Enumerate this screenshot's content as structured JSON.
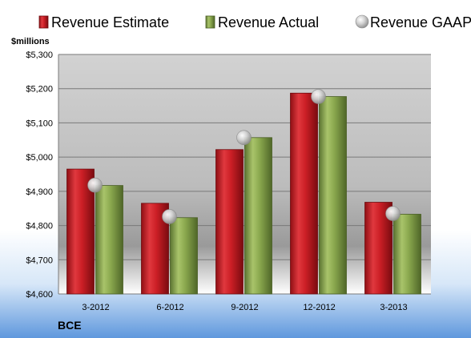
{
  "chart_data": {
    "type": "bar",
    "categories": [
      "3-2012",
      "6-2012",
      "9-2012",
      "12-2012",
      "3-2013"
    ],
    "series": [
      {
        "name": "Revenue Estimate",
        "kind": "bar",
        "color": "#cc1f26",
        "values": [
          4965,
          4865,
          5022,
          5187,
          4868
        ]
      },
      {
        "name": "Revenue Actual",
        "kind": "bar",
        "color": "#8aa84e",
        "values": [
          4917,
          4823,
          5057,
          5177,
          4833
        ]
      },
      {
        "name": "Revenue GAAP",
        "kind": "marker",
        "color": "#b5b5b5",
        "values": [
          4918,
          4826,
          5057,
          5177,
          4835
        ]
      }
    ],
    "ylabel": "$millions",
    "ylim": [
      4600,
      5300
    ],
    "yticks": [
      4600,
      4700,
      4800,
      4900,
      5000,
      5100,
      5200,
      5300
    ],
    "ytick_labels": [
      "$4,600",
      "$4,700",
      "$4,800",
      "$4,900",
      "$5,000",
      "$5,100",
      "$5,200",
      "$5,300"
    ],
    "legend_position": "top",
    "grid": true,
    "company": "BCE"
  }
}
